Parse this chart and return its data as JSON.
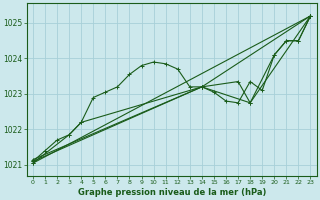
{
  "xlabel": "Graphe pression niveau de la mer (hPa)",
  "background_color": "#cce8ec",
  "grid_color": "#a8d0d8",
  "line_color": "#1a5c1a",
  "text_color": "#1a5c1a",
  "xlim": [
    -0.5,
    23.5
  ],
  "ylim": [
    1020.7,
    1025.55
  ],
  "yticks": [
    1021,
    1022,
    1023,
    1024,
    1025
  ],
  "xticks": [
    0,
    1,
    2,
    3,
    4,
    5,
    6,
    7,
    8,
    9,
    10,
    11,
    12,
    13,
    14,
    15,
    16,
    17,
    18,
    19,
    20,
    21,
    22,
    23
  ],
  "series": [
    {
      "x": [
        0,
        1,
        2,
        3,
        4,
        5,
        6,
        7,
        8,
        9,
        10,
        11,
        12,
        13,
        14,
        15,
        16,
        17,
        18,
        19,
        20,
        21,
        22,
        23
      ],
      "y": [
        1021.1,
        1021.4,
        1021.7,
        1021.85,
        1022.2,
        1022.9,
        1023.05,
        1023.2,
        1023.55,
        1023.8,
        1023.9,
        1023.85,
        1023.7,
        1023.2,
        1023.2,
        1023.05,
        1022.8,
        1022.75,
        1023.35,
        1023.1,
        1024.1,
        1024.5,
        1024.5,
        1025.2
      ]
    },
    {
      "x": [
        0,
        23
      ],
      "y": [
        1021.05,
        1025.2
      ]
    },
    {
      "x": [
        0,
        14,
        23
      ],
      "y": [
        1021.1,
        1023.2,
        1025.2
      ]
    },
    {
      "x": [
        0,
        14,
        18,
        23
      ],
      "y": [
        1021.15,
        1023.2,
        1022.75,
        1025.2
      ]
    },
    {
      "x": [
        0,
        3,
        4,
        14,
        17,
        18,
        20,
        21,
        22,
        23
      ],
      "y": [
        1021.05,
        1021.85,
        1022.2,
        1023.2,
        1023.35,
        1022.75,
        1024.1,
        1024.5,
        1024.5,
        1025.2
      ]
    }
  ]
}
